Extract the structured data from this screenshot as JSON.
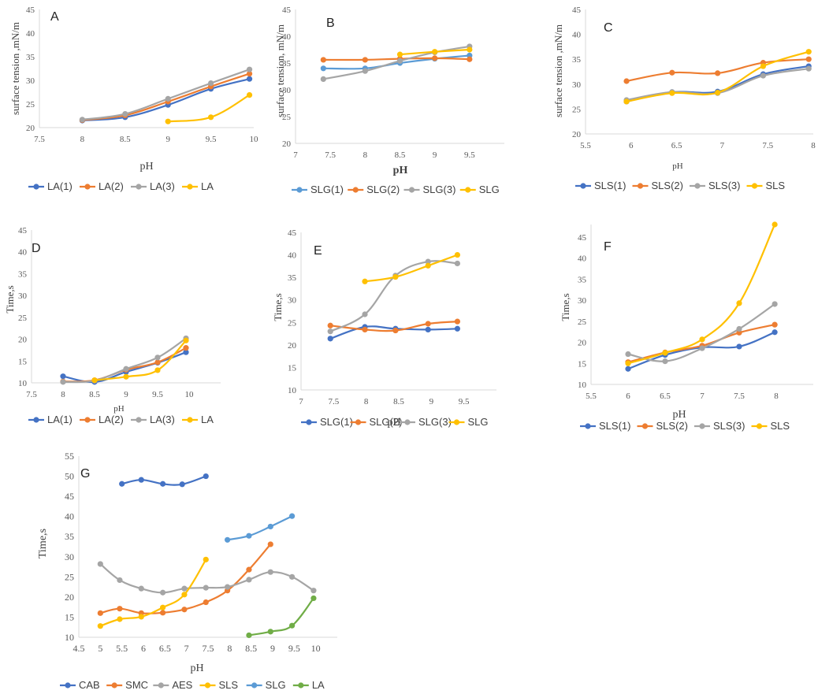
{
  "chart_data": [
    {
      "panel": "A",
      "type": "line",
      "title": "",
      "xlabel": "pH",
      "ylabel": "surface tension ,mN/m",
      "xlim": [
        7.5,
        10
      ],
      "ylim": [
        20,
        45
      ],
      "xticks": [
        "7.5",
        "8",
        "8.5",
        "9",
        "9.5",
        "10"
      ],
      "yticks": [
        "20",
        "25",
        "30",
        "35",
        "40",
        "45"
      ],
      "series": [
        {
          "name": "LA(1)",
          "color": "#4472c4",
          "x": [
            8,
            8.5,
            9,
            9.5,
            9.95
          ],
          "y": [
            21.5,
            22.2,
            24.8,
            28.2,
            30.3
          ]
        },
        {
          "name": "LA(2)",
          "color": "#ed7d31",
          "x": [
            8,
            8.5,
            9,
            9.5,
            9.95
          ],
          "y": [
            21.6,
            22.6,
            25.5,
            28.7,
            31.4
          ]
        },
        {
          "name": "LA(3)",
          "color": "#a5a5a5",
          "x": [
            8,
            8.5,
            9,
            9.5,
            9.95
          ],
          "y": [
            21.7,
            22.9,
            26.1,
            29.4,
            32.3
          ]
        },
        {
          "name": "LA",
          "color": "#ffc000",
          "x": [
            9,
            9.5,
            9.95
          ],
          "y": [
            21.3,
            22.2,
            26.9
          ]
        }
      ]
    },
    {
      "panel": "B",
      "type": "line",
      "title": "",
      "xlabel": "pH",
      "ylabel": "surface tension, mN/m",
      "xlim": [
        7,
        10
      ],
      "ylim": [
        20,
        45
      ],
      "xticks": [
        "7",
        "7.5",
        "8",
        "8.5",
        "9",
        "9.5"
      ],
      "yticks": [
        "20",
        "25",
        "30",
        "35",
        "40",
        "45"
      ],
      "series": [
        {
          "name": "SLG(1)",
          "color": "#5b9bd5",
          "x": [
            7.4,
            8,
            8.5,
            9,
            9.5
          ],
          "y": [
            34,
            34,
            35,
            35.8,
            36.4
          ]
        },
        {
          "name": "SLG(2)",
          "color": "#ed7d31",
          "x": [
            7.4,
            8,
            8.5,
            9,
            9.5
          ],
          "y": [
            35.6,
            35.6,
            35.8,
            35.9,
            35.7
          ]
        },
        {
          "name": "SLG(3)",
          "color": "#a5a5a5",
          "x": [
            7.4,
            8,
            8.5,
            9,
            9.5
          ],
          "y": [
            32,
            33.5,
            35.4,
            37,
            38.1
          ]
        },
        {
          "name": "SLG",
          "color": "#ffc000",
          "x": [
            8.5,
            9,
            9.5
          ],
          "y": [
            36.6,
            37.1,
            37.5
          ]
        }
      ]
    },
    {
      "panel": "C",
      "type": "line",
      "title": "",
      "xlabel": "pH",
      "ylabel": "surface tension ,mN/m",
      "xlim": [
        5.5,
        8
      ],
      "ylim": [
        20,
        45
      ],
      "xticks": [
        "5.5",
        "6",
        "6.5",
        "7",
        "7.5",
        "8"
      ],
      "yticks": [
        "20",
        "25",
        "30",
        "35",
        "40",
        "45"
      ],
      "series": [
        {
          "name": "SLS(1)",
          "color": "#4472c4",
          "x": [
            5.95,
            6.45,
            6.95,
            7.45,
            7.95
          ],
          "y": [
            26.5,
            28.4,
            28.5,
            32,
            33.6
          ]
        },
        {
          "name": "SLS(2)",
          "color": "#ed7d31",
          "x": [
            5.95,
            6.45,
            6.95,
            7.45,
            7.95
          ],
          "y": [
            30.6,
            32.3,
            32.2,
            34.3,
            35
          ]
        },
        {
          "name": "SLS(3)",
          "color": "#a5a5a5",
          "x": [
            5.95,
            6.45,
            6.95,
            7.45,
            7.95
          ],
          "y": [
            26.8,
            28.4,
            28.2,
            31.7,
            33.1
          ]
        },
        {
          "name": "SLS",
          "color": "#ffc000",
          "x": [
            5.95,
            6.45,
            6.95,
            7.45,
            7.95
          ],
          "y": [
            26.5,
            28.2,
            28.3,
            33.6,
            36.5
          ]
        }
      ]
    },
    {
      "panel": "D",
      "type": "line",
      "title": "",
      "xlabel": "pH",
      "ylabel": "Time,s",
      "xlim": [
        7.5,
        10.5
      ],
      "ylim": [
        10,
        45
      ],
      "xticks": [
        "7.5",
        "8",
        "8.5",
        "9",
        "9.5",
        "10"
      ],
      "yticks": [
        "10",
        "15",
        "20",
        "25",
        "30",
        "35",
        "40",
        "45"
      ],
      "series": [
        {
          "name": "LA(1)",
          "color": "#4472c4",
          "x": [
            8,
            8.5,
            9,
            9.5,
            9.95
          ],
          "y": [
            11.5,
            10.2,
            12.5,
            14.6,
            17
          ]
        },
        {
          "name": "LA(2)",
          "color": "#ed7d31",
          "x": [
            8,
            8.5,
            9,
            9.5,
            9.95
          ],
          "y": [
            10.3,
            10.6,
            13,
            14.7,
            18
          ]
        },
        {
          "name": "LA(3)",
          "color": "#a5a5a5",
          "x": [
            8,
            8.5,
            9,
            9.5,
            9.95
          ],
          "y": [
            10.2,
            10.5,
            13.2,
            15.8,
            20.2
          ]
        },
        {
          "name": "LA",
          "color": "#ffc000",
          "x": [
            8.5,
            9,
            9.5,
            9.95
          ],
          "y": [
            10.6,
            11.4,
            12.9,
            19.7
          ]
        }
      ]
    },
    {
      "panel": "E",
      "type": "line",
      "title": "",
      "xlabel": "pH",
      "ylabel": "Time,s",
      "xlim": [
        7,
        10
      ],
      "ylim": [
        10,
        45
      ],
      "xticks": [
        "7",
        "7.5",
        "8",
        "8.5",
        "9",
        "9.5"
      ],
      "yticks": [
        "10",
        "15",
        "20",
        "25",
        "30",
        "35",
        "40",
        "45"
      ],
      "series": [
        {
          "name": "SLG(1)",
          "color": "#4472c4",
          "x": [
            7.45,
            7.98,
            8.45,
            8.95,
            9.4
          ],
          "y": [
            21.4,
            24,
            23.6,
            23.4,
            23.6
          ]
        },
        {
          "name": "SLG(2)",
          "color": "#ed7d31",
          "x": [
            7.45,
            7.98,
            8.45,
            8.95,
            9.4
          ],
          "y": [
            24.3,
            23.4,
            23.2,
            24.7,
            25.2
          ]
        },
        {
          "name": "SLG(3)",
          "color": "#a5a5a5",
          "x": [
            7.45,
            7.98,
            8.45,
            8.95,
            9.4
          ],
          "y": [
            23,
            26.8,
            35.4,
            38.5,
            38.1
          ]
        },
        {
          "name": "SLG",
          "color": "#ffc000",
          "x": [
            7.98,
            8.45,
            8.95,
            9.4
          ],
          "y": [
            34.1,
            35.1,
            37.6,
            40
          ]
        }
      ]
    },
    {
      "panel": "F",
      "type": "line",
      "title": "",
      "xlabel": "pH",
      "ylabel": "Time,s",
      "xlim": [
        5.5,
        8.5
      ],
      "ylim": [
        10,
        48
      ],
      "xticks": [
        "5.5",
        "6",
        "6.5",
        "7",
        "7.5",
        "8"
      ],
      "yticks": [
        "10",
        "15",
        "20",
        "25",
        "30",
        "35",
        "40",
        "45"
      ],
      "series": [
        {
          "name": "SLS(1)",
          "color": "#4472c4",
          "x": [
            6,
            6.5,
            7,
            7.5,
            7.98
          ],
          "y": [
            13.7,
            17,
            18.8,
            19,
            22.4
          ]
        },
        {
          "name": "SLS(2)",
          "color": "#ed7d31",
          "x": [
            6,
            6.5,
            7,
            7.5,
            7.98
          ],
          "y": [
            15.3,
            17.6,
            19.2,
            22.3,
            24.2
          ]
        },
        {
          "name": "SLS(3)",
          "color": "#a5a5a5",
          "x": [
            6,
            6.5,
            7,
            7.5,
            7.98
          ],
          "y": [
            17.2,
            15.5,
            18.6,
            23.2,
            29.1
          ]
        },
        {
          "name": "SLS",
          "color": "#ffc000",
          "x": [
            6,
            6.5,
            7,
            7.5,
            7.98
          ],
          "y": [
            15,
            17.5,
            20.7,
            29.3,
            48
          ]
        }
      ]
    },
    {
      "panel": "G",
      "type": "line",
      "title": "",
      "xlabel": "pH",
      "ylabel": "Time,s",
      "xlim": [
        4.5,
        10.5
      ],
      "ylim": [
        10,
        55
      ],
      "xticks": [
        "4.5",
        "5",
        "5.5",
        "6",
        "6.5",
        "7",
        "7.5",
        "8",
        "8.5",
        "9",
        "9.5",
        "10"
      ],
      "yticks": [
        "10",
        "15",
        "20",
        "25",
        "30",
        "35",
        "40",
        "45",
        "50",
        "55"
      ],
      "series": [
        {
          "name": "CAB",
          "color": "#4472c4",
          "x": [
            5.5,
            5.95,
            6.45,
            6.9,
            7.45
          ],
          "y": [
            48.1,
            49.1,
            48.1,
            48,
            50
          ]
        },
        {
          "name": "SMC",
          "color": "#ed7d31",
          "x": [
            5,
            5.45,
            5.95,
            6.45,
            6.95,
            7.45,
            7.95,
            8.45,
            8.95
          ],
          "y": [
            16,
            17.1,
            16,
            16.1,
            16.9,
            18.7,
            21.6,
            26.8,
            33.1
          ]
        },
        {
          "name": "AES",
          "color": "#a5a5a5",
          "x": [
            5,
            5.45,
            5.95,
            6.45,
            6.95,
            7.45,
            7.95,
            8.45,
            8.95,
            9.45,
            9.95
          ],
          "y": [
            28.2,
            24.2,
            22.1,
            21.1,
            22.1,
            22.3,
            22.5,
            24.3,
            26.2,
            25,
            21.6
          ]
        },
        {
          "name": "SLS",
          "color": "#ffc000",
          "x": [
            5,
            5.45,
            5.95,
            6.45,
            6.95,
            7.45
          ],
          "y": [
            12.8,
            14.5,
            15.1,
            17.4,
            20.6,
            29.3
          ]
        },
        {
          "name": "SLG",
          "color": "#5b9bd5",
          "x": [
            7.95,
            8.45,
            8.95,
            9.45
          ],
          "y": [
            34.2,
            35.2,
            37.5,
            40.1
          ]
        },
        {
          "name": "LA",
          "color": "#70ad47",
          "x": [
            8.45,
            8.95,
            9.45,
            9.95
          ],
          "y": [
            10.5,
            11.4,
            12.9,
            19.7
          ]
        }
      ]
    }
  ]
}
